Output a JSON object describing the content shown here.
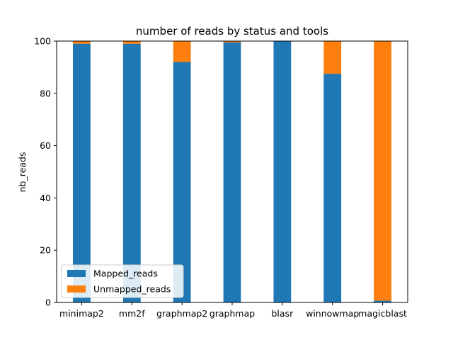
{
  "chart_data": {
    "type": "bar",
    "stacked": true,
    "title": "number of reads by status and tools",
    "xlabel": "",
    "ylabel": "nb_reads",
    "ylim": [
      0,
      100
    ],
    "yticks": [
      0,
      20,
      40,
      60,
      80,
      100
    ],
    "categories": [
      "minimap2",
      "mm2f",
      "graphmap2",
      "graphmap",
      "blasr",
      "winnowmap",
      "magicblast"
    ],
    "series": [
      {
        "name": "Mapped_reads",
        "color": "#1f77b4",
        "values": [
          99,
          99,
          92,
          99.5,
          100,
          87.5,
          0.7
        ]
      },
      {
        "name": "Unmapped_reads",
        "color": "#ff7f0e",
        "values": [
          1,
          1,
          8,
          0.5,
          0,
          12.5,
          99.3
        ]
      }
    ],
    "grid": false,
    "legend_position": "lower-left"
  }
}
